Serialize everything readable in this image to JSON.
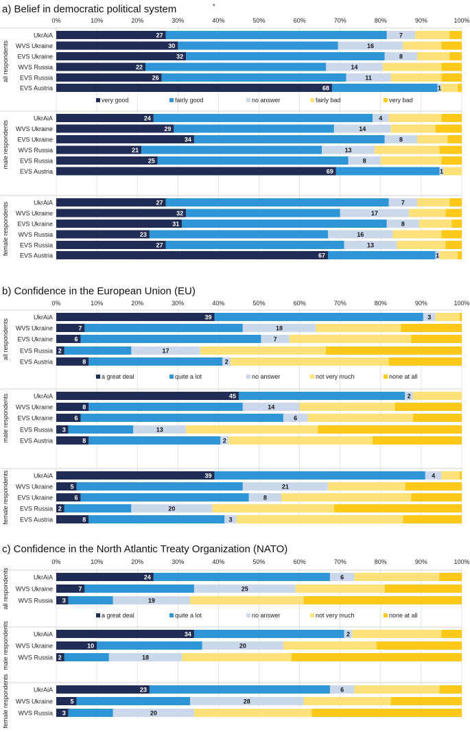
{
  "colors": {
    "very_good": "#212c54",
    "fairly_good": "#2e96d6",
    "no_answer": "#cbd8ec",
    "fairly_bad": "#fde27a",
    "very_bad": "#fcc91b"
  },
  "ticks": [
    "0%",
    "10%",
    "20%",
    "30%",
    "40%",
    "50%",
    "60%",
    "70%",
    "80%",
    "90%",
    "100%"
  ],
  "chart_data": [
    {
      "type": "bar",
      "stacked": "horizontal-100%",
      "title": "a) Belief in democratic political system",
      "title_mark": "*",
      "legend": [
        "very good",
        "fairly good",
        "no answer",
        "fairly bad",
        "very bad"
      ],
      "xlim": [
        0,
        100
      ],
      "groups": [
        {
          "label": "all respondents",
          "rows": [
            {
              "name": "UkrAiA",
              "values": [
                27,
                54.5,
                7,
                8.5,
                3
              ],
              "labels": [
                "27",
                "",
                "7",
                "",
                ""
              ]
            },
            {
              "name": "WVS Ukraine",
              "values": [
                30,
                39.5,
                16,
                9.5,
                5
              ],
              "labels": [
                "30",
                "",
                "16",
                "",
                ""
              ]
            },
            {
              "name": "EVS Ukraine",
              "values": [
                32,
                49,
                8,
                8,
                3
              ],
              "labels": [
                "32",
                "",
                "8",
                "",
                ""
              ]
            },
            {
              "name": "WVS Russia",
              "values": [
                22,
                44.5,
                14,
                14.5,
                5
              ],
              "labels": [
                "22",
                "",
                "14",
                "",
                ""
              ]
            },
            {
              "name": "EVS Russia",
              "values": [
                26,
                45.5,
                11,
                12.5,
                5
              ],
              "labels": [
                "26",
                "",
                "11",
                "",
                ""
              ]
            },
            {
              "name": "EVS Austria",
              "values": [
                68,
                26,
                1,
                4,
                1
              ],
              "labels": [
                "68",
                "",
                "1",
                "",
                ""
              ]
            }
          ]
        },
        {
          "label": "male respondents",
          "rows": [
            {
              "name": "UkrAiA",
              "values": [
                24,
                54,
                4,
                13,
                5
              ],
              "labels": [
                "24",
                "",
                "4",
                "",
                ""
              ]
            },
            {
              "name": "WVS Ukraine",
              "values": [
                29,
                39.5,
                14,
                11,
                6.5
              ],
              "labels": [
                "29",
                "",
                "14",
                "",
                ""
              ]
            },
            {
              "name": "EVS Ukraine",
              "values": [
                34,
                47,
                8,
                7.5,
                3.5
              ],
              "labels": [
                "34",
                "",
                "8",
                "",
                ""
              ]
            },
            {
              "name": "WVS Russia",
              "values": [
                21,
                44.5,
                13,
                16,
                5.5
              ],
              "labels": [
                "21",
                "",
                "13",
                "",
                ""
              ]
            },
            {
              "name": "EVS Russia",
              "values": [
                25,
                47,
                8,
                15,
                5
              ],
              "labels": [
                "25",
                "",
                "8",
                "",
                ""
              ]
            },
            {
              "name": "EVS Austria",
              "values": [
                69,
                25.5,
                1,
                4.5,
                0
              ],
              "labels": [
                "69",
                "",
                "1",
                "",
                ""
              ]
            }
          ]
        },
        {
          "label": "female respondents",
          "rows": [
            {
              "name": "UkrAiA",
              "values": [
                27,
                55,
                7,
                8,
                3
              ],
              "labels": [
                "27",
                "",
                "7",
                "",
                ""
              ]
            },
            {
              "name": "WVS Ukraine",
              "values": [
                32,
                38,
                17,
                9,
                4
              ],
              "labels": [
                "32",
                "",
                "17",
                "",
                ""
              ]
            },
            {
              "name": "EVS Ukraine",
              "values": [
                31,
                50.5,
                8,
                8,
                2.5
              ],
              "labels": [
                "31",
                "",
                "8",
                "",
                ""
              ]
            },
            {
              "name": "WVS Russia",
              "values": [
                23,
                44,
                16,
                12,
                5
              ],
              "labels": [
                "23",
                "",
                "16",
                "",
                ""
              ]
            },
            {
              "name": "EVS Russia",
              "values": [
                27,
                44,
                13,
                12,
                4
              ],
              "labels": [
                "27",
                "",
                "13",
                "",
                ""
              ]
            },
            {
              "name": "EVS Austria",
              "values": [
                67,
                26.5,
                1,
                4.5,
                1
              ],
              "labels": [
                "67",
                "",
                "1",
                "",
                ""
              ]
            }
          ]
        }
      ]
    },
    {
      "type": "bar",
      "stacked": "horizontal-100%",
      "title": "b) Confidence in the European Union (EU)",
      "legend": [
        "a great deal",
        "quite a lot",
        "no answer",
        "not very much",
        "none at all"
      ],
      "xlim": [
        0,
        100
      ],
      "groups": [
        {
          "label": "all respondents",
          "rows": [
            {
              "name": "UkrAiA",
              "values": [
                39,
                51.5,
                3,
                6,
                0.5
              ],
              "labels": [
                "39",
                "",
                "3",
                "",
                ""
              ]
            },
            {
              "name": "WVS Ukraine",
              "values": [
                7,
                39,
                18,
                21,
                15
              ],
              "labels": [
                "7",
                "",
                "18",
                "",
                ""
              ]
            },
            {
              "name": "EVS Ukraine",
              "values": [
                6,
                44.5,
                7,
                30,
                12.5
              ],
              "labels": [
                "6",
                "",
                "7",
                "",
                ""
              ]
            },
            {
              "name": "EVS Russia",
              "values": [
                2,
                16.5,
                17,
                31,
                33.5
              ],
              "labels": [
                "2",
                "",
                "17",
                "",
                ""
              ]
            },
            {
              "name": "EVS Austria",
              "values": [
                8,
                33,
                2,
                39,
                18
              ],
              "labels": [
                "8",
                "",
                "2",
                "",
                ""
              ]
            }
          ]
        },
        {
          "label": "male respondents",
          "rows": [
            {
              "name": "UkrAiA",
              "values": [
                45,
                41,
                2,
                12,
                0
              ],
              "labels": [
                "45",
                "",
                "2",
                "",
                ""
              ]
            },
            {
              "name": "WVS Ukraine",
              "values": [
                8,
                38,
                14,
                23.5,
                16.5
              ],
              "labels": [
                "8",
                "",
                "14",
                "",
                ""
              ]
            },
            {
              "name": "EVS Ukraine",
              "values": [
                6,
                50,
                6,
                26,
                12
              ],
              "labels": [
                "6",
                "",
                "6",
                "",
                ""
              ]
            },
            {
              "name": "EVS Russia",
              "values": [
                3,
                16,
                13,
                32.5,
                35.5
              ],
              "labels": [
                "3",
                "",
                "13",
                "",
                ""
              ]
            },
            {
              "name": "EVS Austria",
              "values": [
                8,
                32.5,
                2,
                35.5,
                22
              ],
              "labels": [
                "8",
                "",
                "2",
                "",
                ""
              ]
            }
          ]
        },
        {
          "label": "female respondents",
          "rows": [
            {
              "name": "UkrAiA",
              "values": [
                39,
                52,
                4,
                4.5,
                0.5
              ],
              "labels": [
                "39",
                "",
                "4",
                "",
                ""
              ]
            },
            {
              "name": "WVS Ukraine",
              "values": [
                5,
                41,
                21,
                19,
                14
              ],
              "labels": [
                "5",
                "",
                "21",
                "",
                ""
              ]
            },
            {
              "name": "EVS Ukraine",
              "values": [
                6,
                41.5,
                8,
                32,
                12.5
              ],
              "labels": [
                "6",
                "",
                "8",
                "",
                ""
              ]
            },
            {
              "name": "EVS Russia",
              "values": [
                2,
                16.5,
                20,
                30,
                31.5
              ],
              "labels": [
                "2",
                "",
                "20",
                "",
                ""
              ]
            },
            {
              "name": "EVS Austria",
              "values": [
                8,
                33.5,
                3,
                41,
                14.5
              ],
              "labels": [
                "8",
                "",
                "3",
                "",
                ""
              ]
            }
          ]
        }
      ]
    },
    {
      "type": "bar",
      "stacked": "horizontal-100%",
      "title": "c) Confidence in the North Atlantic Treaty Organization (NATO)",
      "legend": [
        "a great deal",
        "quite a lot",
        "no answer",
        "not very much",
        "none at all"
      ],
      "xlim": [
        0,
        100
      ],
      "groups": [
        {
          "label": "all respondents",
          "rows": [
            {
              "name": "UkrAiA",
              "values": [
                24,
                43.5,
                6,
                21,
                5.5
              ],
              "labels": [
                "24",
                "",
                "6",
                "",
                ""
              ]
            },
            {
              "name": "WVS Ukraine",
              "values": [
                7,
                27,
                25,
                22,
                19
              ],
              "labels": [
                "7",
                "",
                "25",
                "",
                ""
              ]
            },
            {
              "name": "WVS Russia",
              "values": [
                3,
                11,
                19,
                28,
                39
              ],
              "labels": [
                "3",
                "",
                "19",
                "",
                ""
              ]
            }
          ]
        },
        {
          "label": "male respondents",
          "rows": [
            {
              "name": "UkrAiA",
              "values": [
                34,
                37,
                2,
                22,
                5
              ],
              "labels": [
                "34",
                "",
                "2",
                "",
                ""
              ]
            },
            {
              "name": "WVS Ukraine",
              "values": [
                10,
                26,
                20,
                23,
                21
              ],
              "labels": [
                "10",
                "",
                "20",
                "",
                ""
              ]
            },
            {
              "name": "WVS Russia",
              "values": [
                2,
                11,
                18,
                27,
                42
              ],
              "labels": [
                "2",
                "",
                "18",
                "",
                ""
              ]
            }
          ]
        },
        {
          "label": "female respondents",
          "rows": [
            {
              "name": "UkrAiA",
              "values": [
                23,
                44.5,
                6,
                21,
                5.5
              ],
              "labels": [
                "23",
                "",
                "6",
                "",
                ""
              ]
            },
            {
              "name": "WVS Ukraine",
              "values": [
                5,
                28,
                28,
                21.5,
                17.5
              ],
              "labels": [
                "5",
                "",
                "28",
                "",
                ""
              ]
            },
            {
              "name": "WVS Russia",
              "values": [
                3,
                11,
                20,
                29,
                37
              ],
              "labels": [
                "3",
                "",
                "20",
                "",
                ""
              ]
            }
          ]
        }
      ]
    }
  ]
}
